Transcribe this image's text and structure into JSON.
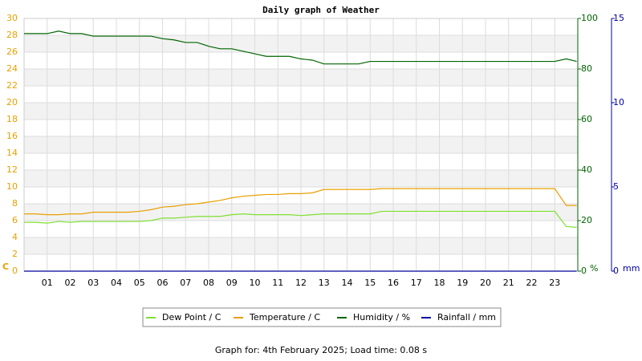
{
  "chart_data": {
    "type": "line",
    "title": "Daily graph of Weather",
    "footer": "Graph for: 4th February 2025; Load time: 0.08 s",
    "y_label": "C",
    "y2_label": "%",
    "y3_label": "mm",
    "xlim": [
      0,
      24
    ],
    "xticks": [
      {
        "value": 1,
        "label": "01"
      },
      {
        "value": 2,
        "label": "02"
      },
      {
        "value": 3,
        "label": "03"
      },
      {
        "value": 4,
        "label": "04"
      },
      {
        "value": 5,
        "label": "05"
      },
      {
        "value": 6,
        "label": "06"
      },
      {
        "value": 7,
        "label": "07"
      },
      {
        "value": 8,
        "label": "08"
      },
      {
        "value": 9,
        "label": "09"
      },
      {
        "value": 10,
        "label": "10"
      },
      {
        "value": 11,
        "label": "11"
      },
      {
        "value": 12,
        "label": "12"
      },
      {
        "value": 13,
        "label": "13"
      },
      {
        "value": 14,
        "label": "14"
      },
      {
        "value": 15,
        "label": "15"
      },
      {
        "value": 16,
        "label": "16"
      },
      {
        "value": 17,
        "label": "17"
      },
      {
        "value": 18,
        "label": "18"
      },
      {
        "value": 19,
        "label": "19"
      },
      {
        "value": 20,
        "label": "20"
      },
      {
        "value": 21,
        "label": "21"
      },
      {
        "value": 22,
        "label": "22"
      },
      {
        "value": 23,
        "label": "23"
      }
    ],
    "ylim": [
      0,
      30
    ],
    "yticks": [
      0,
      2,
      4,
      6,
      8,
      10,
      12,
      14,
      16,
      18,
      20,
      22,
      24,
      26,
      28,
      30
    ],
    "y_color": "#e8a000",
    "y2lim": [
      0,
      100
    ],
    "y2ticks": [
      0,
      20,
      40,
      60,
      80,
      100
    ],
    "y2_color": "#006400",
    "y3lim": [
      0,
      15
    ],
    "y3ticks": [
      0,
      5,
      10,
      15
    ],
    "y3_color": "#0000a0",
    "grid": true,
    "legend": "bottom",
    "x": [
      0,
      0.5,
      1,
      1.5,
      2,
      2.5,
      3,
      3.5,
      4,
      4.5,
      5,
      5.5,
      6,
      6.5,
      7,
      7.5,
      8,
      8.5,
      9,
      9.5,
      10,
      10.5,
      11,
      11.5,
      12,
      12.5,
      13,
      13.5,
      14,
      14.5,
      15,
      15.5,
      16,
      16.5,
      17,
      17.5,
      18,
      18.5,
      19,
      19.5,
      20,
      20.5,
      21,
      21.5,
      22,
      22.5,
      23,
      23.5,
      23.95
    ],
    "series": [
      {
        "name": "Dew Point / C",
        "color": "#80e030",
        "axis": "y",
        "values": [
          5.8,
          5.8,
          5.7,
          5.9,
          5.8,
          5.9,
          5.9,
          5.9,
          5.9,
          5.9,
          5.9,
          6.0,
          6.3,
          6.3,
          6.4,
          6.5,
          6.5,
          6.5,
          6.7,
          6.8,
          6.7,
          6.7,
          6.7,
          6.7,
          6.6,
          6.7,
          6.8,
          6.8,
          6.8,
          6.8,
          6.8,
          7.1,
          7.1,
          7.1,
          7.1,
          7.1,
          7.1,
          7.1,
          7.1,
          7.1,
          7.1,
          7.1,
          7.1,
          7.1,
          7.1,
          7.1,
          7.1,
          5.3,
          5.2
        ]
      },
      {
        "name": "Temperature / C",
        "color": "#e8a000",
        "axis": "y",
        "values": [
          6.8,
          6.8,
          6.7,
          6.7,
          6.8,
          6.8,
          7.0,
          7.0,
          7.0,
          7.0,
          7.1,
          7.3,
          7.6,
          7.7,
          7.9,
          8.0,
          8.2,
          8.4,
          8.7,
          8.9,
          9.0,
          9.1,
          9.1,
          9.2,
          9.2,
          9.3,
          9.7,
          9.7,
          9.7,
          9.7,
          9.7,
          9.8,
          9.8,
          9.8,
          9.8,
          9.8,
          9.8,
          9.8,
          9.8,
          9.8,
          9.8,
          9.8,
          9.8,
          9.8,
          9.8,
          9.8,
          9.8,
          7.8,
          7.8
        ]
      },
      {
        "name": "Humidity / %",
        "color": "#006400",
        "axis": "y2",
        "values": [
          94,
          94,
          94,
          95,
          94,
          94,
          93,
          93,
          93,
          93,
          93,
          93,
          92,
          91.5,
          90.5,
          90.5,
          89,
          88,
          88,
          87,
          86,
          85,
          85,
          85,
          84,
          83.5,
          82,
          82,
          82,
          82,
          83,
          83,
          83,
          83,
          83,
          83,
          83,
          83,
          83,
          83,
          83,
          83,
          83,
          83,
          83,
          83,
          83,
          84,
          83
        ]
      },
      {
        "name": "Rainfall / mm",
        "color": "#0000a0",
        "axis": "y3",
        "values": [
          0,
          0,
          0,
          0,
          0,
          0,
          0,
          0,
          0,
          0,
          0,
          0,
          0,
          0,
          0,
          0,
          0,
          0,
          0,
          0,
          0,
          0,
          0,
          0,
          0,
          0,
          0,
          0,
          0,
          0,
          0,
          0,
          0,
          0,
          0,
          0,
          0,
          0,
          0,
          0,
          0,
          0,
          0,
          0,
          0,
          0,
          0,
          0,
          0
        ]
      }
    ]
  }
}
